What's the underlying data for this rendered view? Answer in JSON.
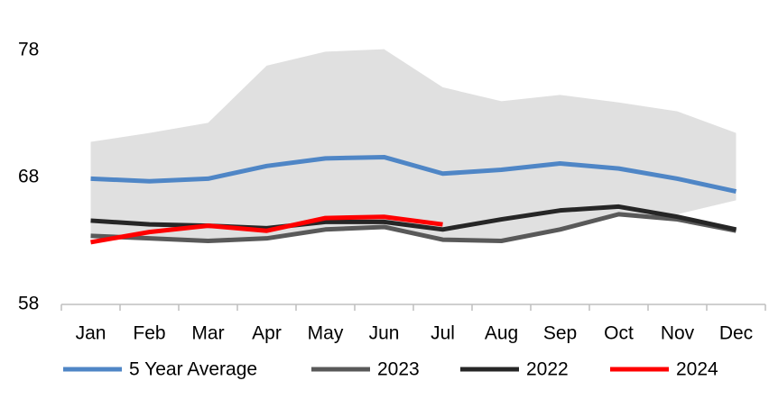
{
  "chart_data": {
    "type": "line",
    "categories": [
      "Jan",
      "Feb",
      "Mar",
      "Apr",
      "May",
      "Jun",
      "Jul",
      "Aug",
      "Sep",
      "Oct",
      "Nov",
      "Dec"
    ],
    "band": {
      "color": "#e0e0e0",
      "high": [
        70.8,
        71.5,
        72.3,
        76.8,
        77.9,
        78.1,
        75.1,
        74.0,
        74.5,
        73.9,
        73.2,
        71.5
      ],
      "low": [
        63.4,
        63.2,
        63.0,
        63.2,
        63.9,
        64.1,
        63.0,
        63.0,
        63.9,
        65.1,
        65.1,
        66.2
      ]
    },
    "series": [
      {
        "name": "5 Year Average",
        "color": "#4f86c6",
        "values": [
          67.9,
          67.7,
          67.9,
          68.9,
          69.5,
          69.6,
          68.3,
          68.6,
          69.1,
          68.7,
          67.9,
          66.9
        ]
      },
      {
        "name": "2023",
        "color": "#595959",
        "values": [
          63.4,
          63.2,
          63.0,
          63.2,
          63.9,
          64.1,
          63.1,
          63.0,
          63.9,
          65.1,
          64.7,
          63.8
        ]
      },
      {
        "name": "2022",
        "color": "#262626",
        "values": [
          64.6,
          64.3,
          64.2,
          64.0,
          64.5,
          64.5,
          63.9,
          64.7,
          65.4,
          65.7,
          64.9,
          63.9
        ]
      },
      {
        "name": "2024",
        "color": "#ff0000",
        "values": [
          62.9,
          63.7,
          64.2,
          63.8,
          64.8,
          64.9,
          64.3,
          null,
          null,
          null,
          null,
          null
        ]
      }
    ],
    "ylim": [
      58,
      78
    ],
    "yticks": [
      58,
      68,
      78
    ],
    "grid": false
  }
}
